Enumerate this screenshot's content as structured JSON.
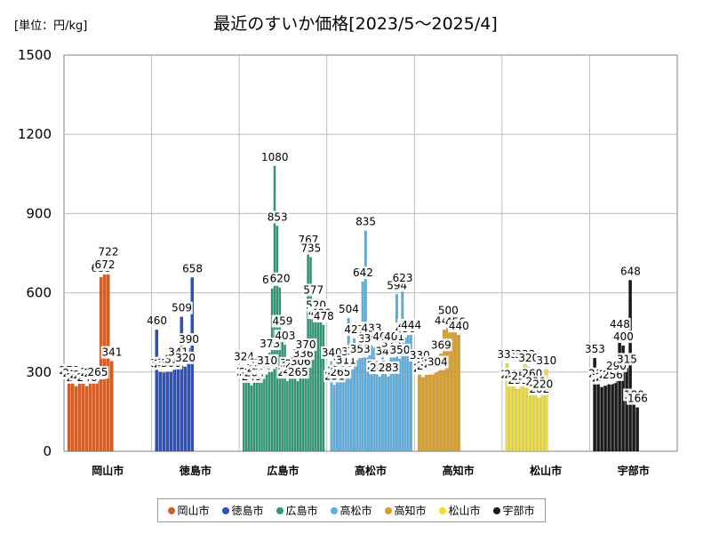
{
  "header": {
    "unit_label": "[単位：円/kg]",
    "title": "最近のすいか価格[2023/5～2025/4]"
  },
  "chart_data": {
    "type": "bar",
    "title": "最近のすいか価格[2023/5～2025/4]",
    "unit": "[単位：円/kg]",
    "xlabel": "",
    "ylabel": "",
    "ylim": [
      0,
      1500
    ],
    "yticks": [
      0,
      300,
      600,
      900,
      1200,
      1500
    ],
    "grid": true,
    "legend_position": "bottom",
    "series": [
      {
        "name": "岡山市",
        "color": "#d2602a",
        "values": [
          273,
          263,
          246,
          257,
          255,
          246,
          265,
          262,
          265,
          659,
          672,
          722,
          341
        ]
      },
      {
        "name": "徳島市",
        "color": "#2a52c8",
        "values": [
          460,
          300,
          298,
          301,
          300,
          314,
          341,
          509,
          320,
          390,
          658
        ]
      },
      {
        "name": "広島市",
        "color": "#2b9a72",
        "values": [
          324,
          268,
          266,
          249,
          264,
          280,
          301,
          290,
          301,
          310,
          373,
          616,
          1080,
          853,
          620,
          459,
          403,
          265,
          300,
          275,
          298,
          265,
          306,
          336,
          370,
          767,
          735,
          577,
          520,
          491,
          490,
          478
        ]
      },
      {
        "name": "高松市",
        "color": "#5aaee0",
        "values": [
          340,
          251,
          270,
          265,
          300,
          311,
          504,
          343,
          427,
          345,
          353,
          642,
          835,
          391,
          433,
          393,
          291,
          282,
          401,
          345,
          283,
          375,
          401,
          594,
          350,
          623,
          430,
          444,
          444
        ]
      },
      {
        "name": "高知市",
        "color": "#d99e2a",
        "values": [
          330,
          280,
          289,
          304,
          297,
          304,
          369,
          460,
          500,
          460,
          456,
          440
        ]
      },
      {
        "name": "松山市",
        "color": "#f2e020",
        "values": [
          333,
          258,
          257,
          235,
          250,
          333,
          320,
          260,
          230,
          202,
          220,
          310
        ]
      },
      {
        "name": "宇部市",
        "color": "#1a1a1a",
        "values": [
          353,
          260,
          243,
          248,
          258,
          256,
          290,
          448,
          400,
          315,
          648,
          180,
          166
        ]
      }
    ]
  }
}
